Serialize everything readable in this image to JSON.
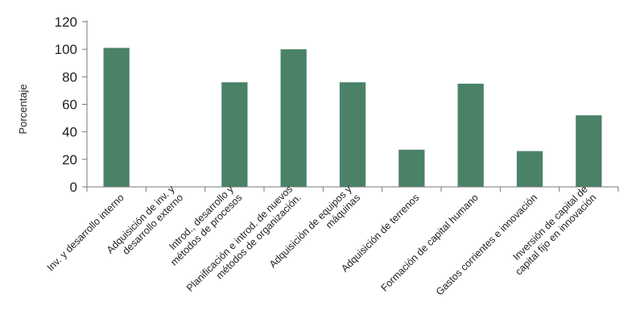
{
  "chart_data": {
    "type": "bar",
    "ylabel": "Porcentaje",
    "xlabel": "",
    "ylim": [
      0,
      120
    ],
    "yticks": [
      0,
      20,
      40,
      60,
      80,
      100,
      120
    ],
    "grid": false,
    "legend": "none",
    "colors": {
      "bar": "#4a8268",
      "axis": "#777777"
    },
    "categories": [
      [
        "Inv. y desarrollo interno"
      ],
      [
        "Adquisición de inv. y",
        "desarrollo externo"
      ],
      [
        "Introd., desarrollo y",
        "métodos de procesos"
      ],
      [
        "Planificación e introd. de nuevos",
        "métodos de organización."
      ],
      [
        "Adquisición de equipos y",
        "máquinas"
      ],
      [
        "Adquisición de terrenos"
      ],
      [
        "Formación de capital humano"
      ],
      [
        "Gastos corrientes e innovación"
      ],
      [
        "Inversión de capital de",
        "capital fijo en innovación"
      ]
    ],
    "values": [
      101,
      0,
      76,
      100,
      76,
      27,
      75,
      26,
      52
    ]
  }
}
